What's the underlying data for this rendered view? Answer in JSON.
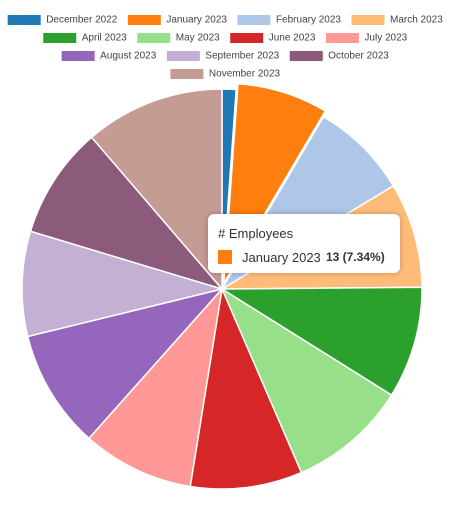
{
  "chart_data": {
    "type": "pie",
    "categories": [
      "December 2022",
      "January 2023",
      "February 2023",
      "March 2023",
      "April 2023",
      "May 2023",
      "June 2023",
      "July 2023",
      "August 2023",
      "September 2023",
      "October 2023",
      "November 2023"
    ],
    "values": [
      2,
      13,
      14,
      15,
      16,
      17,
      16,
      16,
      17,
      15,
      16,
      20
    ],
    "colors": [
      "#1f77b4",
      "#ff7f0e",
      "#aec7e8",
      "#ffbb78",
      "#2ca02c",
      "#98df8a",
      "#d62728",
      "#ff9896",
      "#9467bd",
      "#c5b0d5",
      "#8c5a7a",
      "#c49c94"
    ],
    "legend": "top",
    "tooltip": {
      "title": "# Employees",
      "index": 1,
      "label": "13 (7.34%)"
    }
  }
}
